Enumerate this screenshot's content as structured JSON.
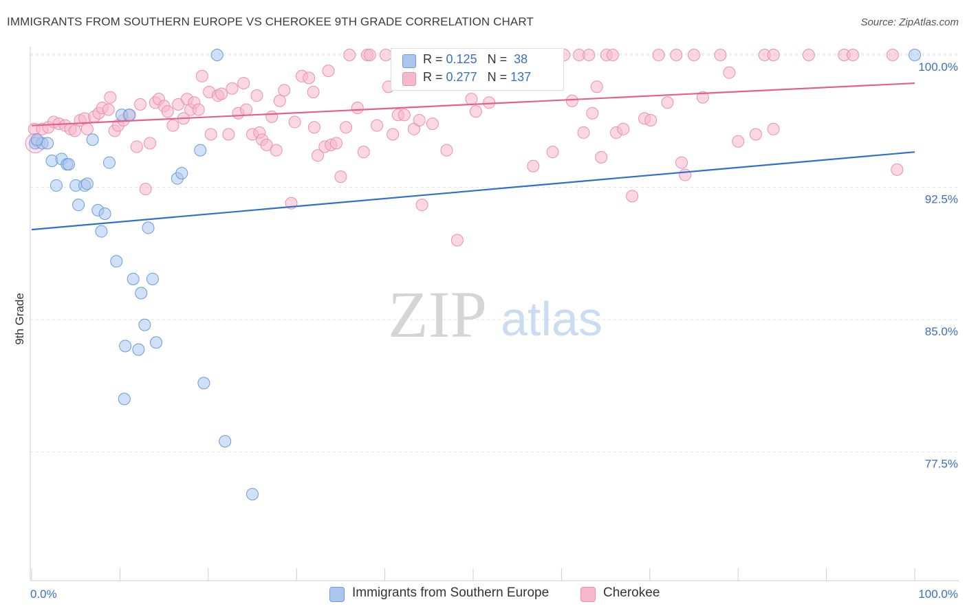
{
  "title": "IMMIGRANTS FROM SOUTHERN EUROPE VS CHEROKEE 9TH GRADE CORRELATION CHART",
  "source": "Source: ZipAtlas.com",
  "watermark": {
    "zip": "ZIP",
    "atlas": "atlas"
  },
  "legend": {
    "r_label": "R =",
    "n_label": "N =",
    "series": [
      {
        "name": "Immigrants from Southern Europe",
        "r": "0.125",
        "n": "38",
        "color": "#aac6ee",
        "stroke": "#6c9bdc",
        "line": "#2f6fce"
      },
      {
        "name": "Cherokee",
        "r": "0.277",
        "n": "137",
        "color": "#f7b7cc",
        "stroke": "#ea8fae",
        "line": "#e55f8e"
      }
    ]
  },
  "chart_data": {
    "type": "scatter",
    "title": "IMMIGRANTS FROM SOUTHERN EUROPE VS CHEROKEE 9TH GRADE CORRELATION CHART",
    "xlabel": "",
    "ylabel": "9th Grade",
    "xlim": [
      0,
      100
    ],
    "ylim": [
      70.5,
      101.2
    ],
    "x_tick_labels": [
      "0.0%",
      "100.0%"
    ],
    "y_ticks": [
      100.0,
      92.5,
      85.0,
      77.5
    ],
    "y_tick_labels": [
      "100.0%",
      "92.5%",
      "85.0%",
      "77.5%"
    ],
    "series": [
      {
        "name": "Immigrants from Southern Europe",
        "trend": {
          "x": [
            0,
            100
          ],
          "y": [
            90.1,
            94.5
          ]
        },
        "points": [
          [
            0.4,
            95.0
          ],
          [
            1.2,
            95.0
          ],
          [
            1.8,
            95.0
          ],
          [
            2.3,
            94.0
          ],
          [
            3.4,
            94.1
          ],
          [
            4.0,
            93.8
          ],
          [
            4.2,
            93.8
          ],
          [
            2.8,
            92.6
          ],
          [
            5.0,
            92.6
          ],
          [
            6.0,
            92.6
          ],
          [
            6.3,
            92.7
          ],
          [
            5.3,
            91.5
          ],
          [
            7.5,
            91.2
          ],
          [
            8.3,
            91.0
          ],
          [
            7.9,
            90.0
          ],
          [
            10.2,
            96.6
          ],
          [
            11.1,
            96.6
          ],
          [
            6.9,
            95.2
          ],
          [
            8.8,
            93.9
          ],
          [
            16.5,
            93.0
          ],
          [
            17.0,
            93.3
          ],
          [
            19.1,
            94.6
          ],
          [
            13.2,
            90.2
          ],
          [
            9.6,
            88.3
          ],
          [
            11.5,
            87.3
          ],
          [
            13.7,
            87.3
          ],
          [
            12.4,
            86.5
          ],
          [
            12.8,
            84.7
          ],
          [
            14.1,
            83.7
          ],
          [
            10.6,
            83.5
          ],
          [
            12.1,
            83.3
          ],
          [
            10.5,
            80.5
          ],
          [
            19.5,
            81.4
          ],
          [
            21.9,
            78.1
          ],
          [
            25.0,
            75.1
          ],
          [
            21.0,
            100.0
          ],
          [
            100.0,
            100.0
          ],
          [
            0.6,
            95.2
          ]
        ]
      },
      {
        "name": "Cherokee",
        "trend": {
          "x": [
            0,
            100
          ],
          "y": [
            96.0,
            98.4
          ]
        },
        "points": [
          [
            0.3,
            95.8
          ],
          [
            0.6,
            95.1
          ],
          [
            1.2,
            95.8
          ],
          [
            1.9,
            95.9
          ],
          [
            2.5,
            96.2
          ],
          [
            3.1,
            96.1
          ],
          [
            3.8,
            96.0
          ],
          [
            4.4,
            95.8
          ],
          [
            4.9,
            95.7
          ],
          [
            5.5,
            96.3
          ],
          [
            6.0,
            96.4
          ],
          [
            6.3,
            95.8
          ],
          [
            7.1,
            96.5
          ],
          [
            7.6,
            96.7
          ],
          [
            8.0,
            97.0
          ],
          [
            8.7,
            96.9
          ],
          [
            8.9,
            97.6
          ],
          [
            9.4,
            95.7
          ],
          [
            9.8,
            96.0
          ],
          [
            10.4,
            96.3
          ],
          [
            11.0,
            96.6
          ],
          [
            11.9,
            94.8
          ],
          [
            12.3,
            97.2
          ],
          [
            12.9,
            92.4
          ],
          [
            13.4,
            95.0
          ],
          [
            14.0,
            97.3
          ],
          [
            14.4,
            97.5
          ],
          [
            15.0,
            97.1
          ],
          [
            15.4,
            96.8
          ],
          [
            16.0,
            96.0
          ],
          [
            16.6,
            97.2
          ],
          [
            17.2,
            96.4
          ],
          [
            17.6,
            97.5
          ],
          [
            18.0,
            96.9
          ],
          [
            18.4,
            97.3
          ],
          [
            18.9,
            96.9
          ],
          [
            19.3,
            98.8
          ],
          [
            20.1,
            97.9
          ],
          [
            20.3,
            95.5
          ],
          [
            21.1,
            97.7
          ],
          [
            21.5,
            97.8
          ],
          [
            22.3,
            95.5
          ],
          [
            22.7,
            98.1
          ],
          [
            23.4,
            96.7
          ],
          [
            24.0,
            98.4
          ],
          [
            24.3,
            96.9
          ],
          [
            25.0,
            95.5
          ],
          [
            25.5,
            97.7
          ],
          [
            25.8,
            95.6
          ],
          [
            26.1,
            95.2
          ],
          [
            26.6,
            94.9
          ],
          [
            27.2,
            96.5
          ],
          [
            27.7,
            94.6
          ],
          [
            28.1,
            97.4
          ],
          [
            28.6,
            98.0
          ],
          [
            29.4,
            91.6
          ],
          [
            29.8,
            96.2
          ],
          [
            30.6,
            98.8
          ],
          [
            31.4,
            98.7
          ],
          [
            31.9,
            97.9
          ],
          [
            32.0,
            95.9
          ],
          [
            32.4,
            94.3
          ],
          [
            33.2,
            94.8
          ],
          [
            33.6,
            99.1
          ],
          [
            33.9,
            94.9
          ],
          [
            34.5,
            95.0
          ],
          [
            35.0,
            93.1
          ],
          [
            35.6,
            95.9
          ],
          [
            36.0,
            100.0
          ],
          [
            36.9,
            97.0
          ],
          [
            37.6,
            94.5
          ],
          [
            38.0,
            100.0
          ],
          [
            38.3,
            100.0
          ],
          [
            39.1,
            96.0
          ],
          [
            40.1,
            100.0
          ],
          [
            40.4,
            98.2
          ],
          [
            40.9,
            95.5
          ],
          [
            41.5,
            96.6
          ],
          [
            42.2,
            96.6
          ],
          [
            42.6,
            100.0
          ],
          [
            43.3,
            95.8
          ],
          [
            43.9,
            96.3
          ],
          [
            44.2,
            91.5
          ],
          [
            44.9,
            100.0
          ],
          [
            45.4,
            96.1
          ],
          [
            46.2,
            100.0
          ],
          [
            47.0,
            94.6
          ],
          [
            47.8,
            100.0
          ],
          [
            48.2,
            89.5
          ],
          [
            49.0,
            100.0
          ],
          [
            49.8,
            97.5
          ],
          [
            50.3,
            96.8
          ],
          [
            51.0,
            100.0
          ],
          [
            51.8,
            97.3
          ],
          [
            52.6,
            100.0
          ],
          [
            53.1,
            100.0
          ],
          [
            53.8,
            98.8
          ],
          [
            54.3,
            100.0
          ],
          [
            55.0,
            100.0
          ],
          [
            56.0,
            100.0
          ],
          [
            56.8,
            93.7
          ],
          [
            57.4,
            98.9
          ],
          [
            58.1,
            100.0
          ],
          [
            59.0,
            94.5
          ],
          [
            59.5,
            100.0
          ],
          [
            60.3,
            100.0
          ],
          [
            61.2,
            97.4
          ],
          [
            62.0,
            100.0
          ],
          [
            62.5,
            95.6
          ],
          [
            63.1,
            100.0
          ],
          [
            63.5,
            96.7
          ],
          [
            64.0,
            98.2
          ],
          [
            64.5,
            94.2
          ],
          [
            65.1,
            100.0
          ],
          [
            65.8,
            100.0
          ],
          [
            66.2,
            95.6
          ],
          [
            67.0,
            95.8
          ],
          [
            68.0,
            92.0
          ],
          [
            69.4,
            96.4
          ],
          [
            70.1,
            96.3
          ],
          [
            71.0,
            100.0
          ],
          [
            72.0,
            97.3
          ],
          [
            73.0,
            100.0
          ],
          [
            73.6,
            93.9
          ],
          [
            74.0,
            93.2
          ],
          [
            75.0,
            100.0
          ],
          [
            76.0,
            97.6
          ],
          [
            78.0,
            100.0
          ],
          [
            79.0,
            99.0
          ],
          [
            80.0,
            95.1
          ],
          [
            82.0,
            95.5
          ],
          [
            83.0,
            100.0
          ],
          [
            84.0,
            100.0
          ],
          [
            84.0,
            95.8
          ],
          [
            88.0,
            100.0
          ],
          [
            92.0,
            100.0
          ],
          [
            93.0,
            100.0
          ],
          [
            97.5,
            100.0
          ],
          [
            98.0,
            93.5
          ]
        ]
      }
    ]
  }
}
